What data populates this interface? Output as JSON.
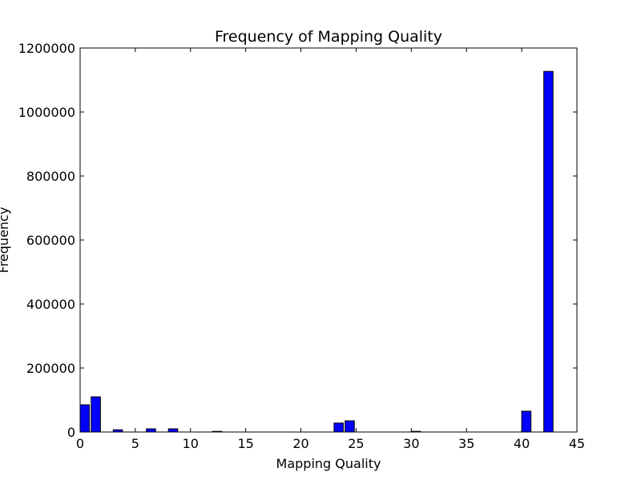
{
  "chart_data": {
    "type": "bar",
    "title": "Frequency of Mapping Quality",
    "xlabel": "Mapping Quality",
    "ylabel": "Frequency",
    "xlim": [
      0,
      45
    ],
    "ylim": [
      0,
      1200000
    ],
    "xticks": [
      0,
      5,
      10,
      15,
      20,
      25,
      30,
      35,
      40,
      45
    ],
    "yticks": [
      0,
      200000,
      400000,
      600000,
      800000,
      1000000,
      1200000
    ],
    "bin_width": 0.84,
    "bars": [
      {
        "x": 0,
        "value": 85000
      },
      {
        "x": 1,
        "value": 110000
      },
      {
        "x": 3,
        "value": 7000
      },
      {
        "x": 6,
        "value": 10000
      },
      {
        "x": 8,
        "value": 10000
      },
      {
        "x": 12,
        "value": 2000
      },
      {
        "x": 23,
        "value": 28000
      },
      {
        "x": 24,
        "value": 35000
      },
      {
        "x": 30,
        "value": 2000
      },
      {
        "x": 40,
        "value": 65000
      },
      {
        "x": 42,
        "value": 1127000
      }
    ],
    "bar_color": "#0000ff",
    "edge_color": "#000000",
    "grid": false,
    "legend": "none"
  }
}
